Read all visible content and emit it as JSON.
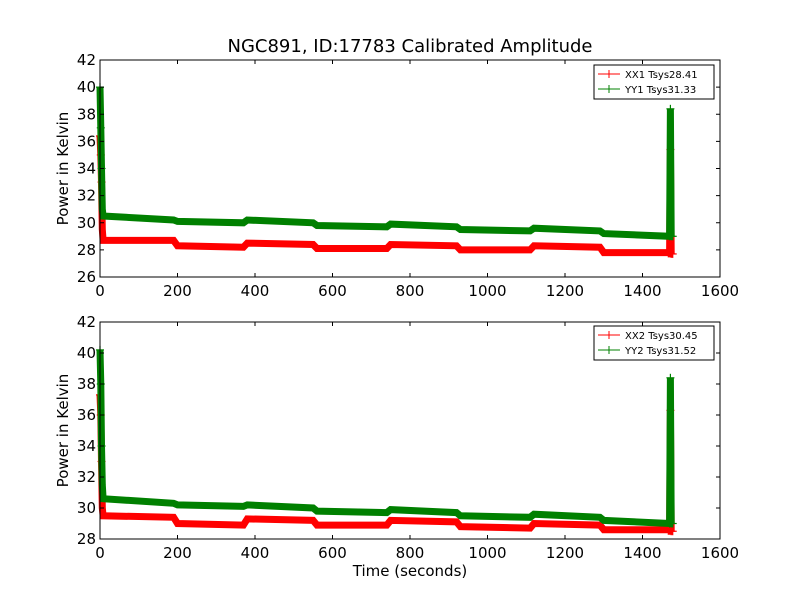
{
  "figure": {
    "title": "NGC891, ID:17783 Calibrated Amplitude",
    "xlabel": "Time (seconds)",
    "ylabel": "Power in Kelvin"
  },
  "colors": {
    "xx": "#ff0000",
    "yy": "#008000",
    "axes": "#000000",
    "background": "#ffffff"
  },
  "chart_data": [
    {
      "type": "line",
      "title": "NGC891, ID:17783 Calibrated Amplitude",
      "xlabel": "",
      "ylabel": "Power in Kelvin",
      "xlim": [
        0,
        1600
      ],
      "ylim": [
        26,
        42
      ],
      "xticks": [
        0,
        200,
        400,
        600,
        800,
        1000,
        1200,
        1400,
        1600
      ],
      "yticks": [
        26,
        28,
        30,
        32,
        34,
        36,
        38,
        40,
        42
      ],
      "legend_position": "top-right",
      "grid": false,
      "series": [
        {
          "name": "XX1 Tsys28.41",
          "color": "#ff0000",
          "points": [
            [
              0,
              36.4
            ],
            [
              2,
              35
            ],
            [
              4,
              33
            ],
            [
              6,
              29.5
            ],
            [
              8,
              28.7
            ],
            [
              190,
              28.7
            ],
            [
              200,
              28.3
            ],
            [
              370,
              28.2
            ],
            [
              380,
              28.5
            ],
            [
              550,
              28.4
            ],
            [
              560,
              28.1
            ],
            [
              740,
              28.1
            ],
            [
              750,
              28.4
            ],
            [
              920,
              28.3
            ],
            [
              930,
              28.0
            ],
            [
              1110,
              28.0
            ],
            [
              1120,
              28.3
            ],
            [
              1290,
              28.2
            ],
            [
              1300,
              27.8
            ],
            [
              1470,
              27.8
            ],
            [
              1472,
              35.4
            ],
            [
              1474,
              27.7
            ],
            [
              1478,
              27.7
            ]
          ]
        },
        {
          "name": "YY1 Tsys31.33",
          "color": "#008000",
          "points": [
            [
              0,
              40.0
            ],
            [
              2,
              37
            ],
            [
              4,
              34
            ],
            [
              6,
              31
            ],
            [
              8,
              30.5
            ],
            [
              190,
              30.2
            ],
            [
              200,
              30.1
            ],
            [
              370,
              30.0
            ],
            [
              380,
              30.2
            ],
            [
              550,
              30.0
            ],
            [
              560,
              29.8
            ],
            [
              740,
              29.7
            ],
            [
              750,
              29.9
            ],
            [
              920,
              29.7
            ],
            [
              930,
              29.5
            ],
            [
              1110,
              29.4
            ],
            [
              1120,
              29.6
            ],
            [
              1290,
              29.4
            ],
            [
              1300,
              29.2
            ],
            [
              1470,
              29.0
            ],
            [
              1472,
              38.4
            ],
            [
              1474,
              29.0
            ],
            [
              1478,
              29.0
            ]
          ]
        }
      ]
    },
    {
      "type": "line",
      "title": "",
      "xlabel": "Time (seconds)",
      "ylabel": "Power in Kelvin",
      "xlim": [
        0,
        1600
      ],
      "ylim": [
        28,
        42
      ],
      "xticks": [
        0,
        200,
        400,
        600,
        800,
        1000,
        1200,
        1400,
        1600
      ],
      "yticks": [
        28,
        30,
        32,
        34,
        36,
        38,
        40,
        42
      ],
      "legend_position": "top-right",
      "grid": false,
      "series": [
        {
          "name": "XX2 Tsys30.45",
          "color": "#ff0000",
          "points": [
            [
              0,
              37.3
            ],
            [
              2,
              36
            ],
            [
              4,
              33
            ],
            [
              6,
              30
            ],
            [
              8,
              29.5
            ],
            [
              190,
              29.4
            ],
            [
              200,
              29.0
            ],
            [
              370,
              28.9
            ],
            [
              380,
              29.3
            ],
            [
              550,
              29.2
            ],
            [
              560,
              28.9
            ],
            [
              740,
              28.9
            ],
            [
              750,
              29.2
            ],
            [
              920,
              29.1
            ],
            [
              930,
              28.8
            ],
            [
              1110,
              28.7
            ],
            [
              1120,
              29.0
            ],
            [
              1290,
              28.9
            ],
            [
              1300,
              28.6
            ],
            [
              1470,
              28.6
            ],
            [
              1472,
              36.3
            ],
            [
              1474,
              28.5
            ],
            [
              1478,
              28.5
            ]
          ]
        },
        {
          "name": "YY2 Tsys31.52",
          "color": "#008000",
          "points": [
            [
              0,
              40.2
            ],
            [
              2,
              38
            ],
            [
              4,
              34
            ],
            [
              6,
              31.5
            ],
            [
              8,
              30.6
            ],
            [
              190,
              30.3
            ],
            [
              200,
              30.2
            ],
            [
              370,
              30.1
            ],
            [
              380,
              30.2
            ],
            [
              550,
              30.0
            ],
            [
              560,
              29.8
            ],
            [
              740,
              29.7
            ],
            [
              750,
              29.9
            ],
            [
              920,
              29.7
            ],
            [
              930,
              29.5
            ],
            [
              1110,
              29.4
            ],
            [
              1120,
              29.6
            ],
            [
              1290,
              29.4
            ],
            [
              1300,
              29.2
            ],
            [
              1470,
              29.0
            ],
            [
              1472,
              38.4
            ],
            [
              1474,
              29.0
            ],
            [
              1478,
              29.0
            ]
          ]
        }
      ]
    }
  ]
}
